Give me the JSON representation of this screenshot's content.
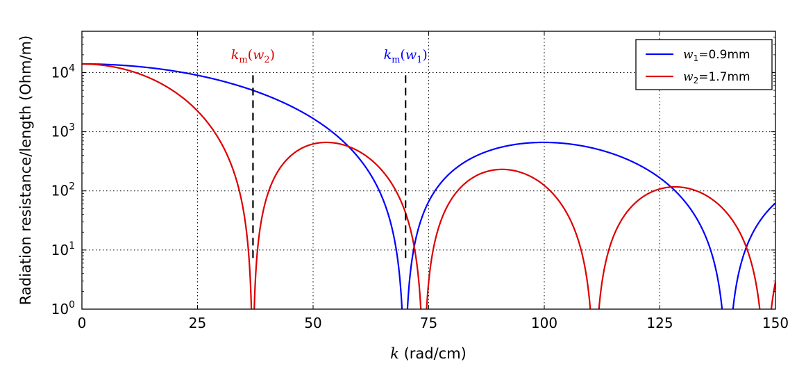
{
  "chart_data": {
    "type": "line",
    "xlabel_var": "k",
    "xlabel_unit": "(rad/cm)",
    "ylabel": "Radiation resistance/length (Ohm/m)",
    "x_scale": "linear",
    "y_scale": "log",
    "xlim": [
      0,
      150
    ],
    "ylim": [
      1,
      50000
    ],
    "x_ticks": [
      "0",
      "25",
      "50",
      "75",
      "100",
      "125",
      "150"
    ],
    "x_tick_values": [
      0,
      25,
      50,
      75,
      100,
      125,
      150
    ],
    "y_tick_exponents": [
      0,
      1,
      2,
      3,
      4
    ],
    "y_tick_base": "10",
    "grid": "dotted",
    "legend_position": "top-right",
    "colors": {
      "w1": "#0000ff",
      "w2": "#dd0000",
      "marker": "#000000"
    },
    "series": [
      {
        "name_var": "w",
        "name_sub": "1",
        "name_value": "=0.9mm",
        "key": "w1",
        "peak": 14000,
        "zero": 70,
        "w": 0.09,
        "x_min": 0
      },
      {
        "name_var": "w",
        "name_sub": "2",
        "name_value": "=1.7mm",
        "key": "w2",
        "peak": 14000,
        "zero": 37,
        "w": 0.17,
        "x_min": 0
      }
    ],
    "markers": [
      {
        "var": "k",
        "sub": "m",
        "arg_var": "w",
        "arg_sub": "2",
        "x": 37,
        "y_top": 9000,
        "y_bottom": 6.5,
        "key": "w2"
      },
      {
        "var": "k",
        "sub": "m",
        "arg_var": "w",
        "arg_sub": "1",
        "x": 70,
        "y_top": 9000,
        "y_bottom": 6.5,
        "key": "w1"
      }
    ]
  }
}
